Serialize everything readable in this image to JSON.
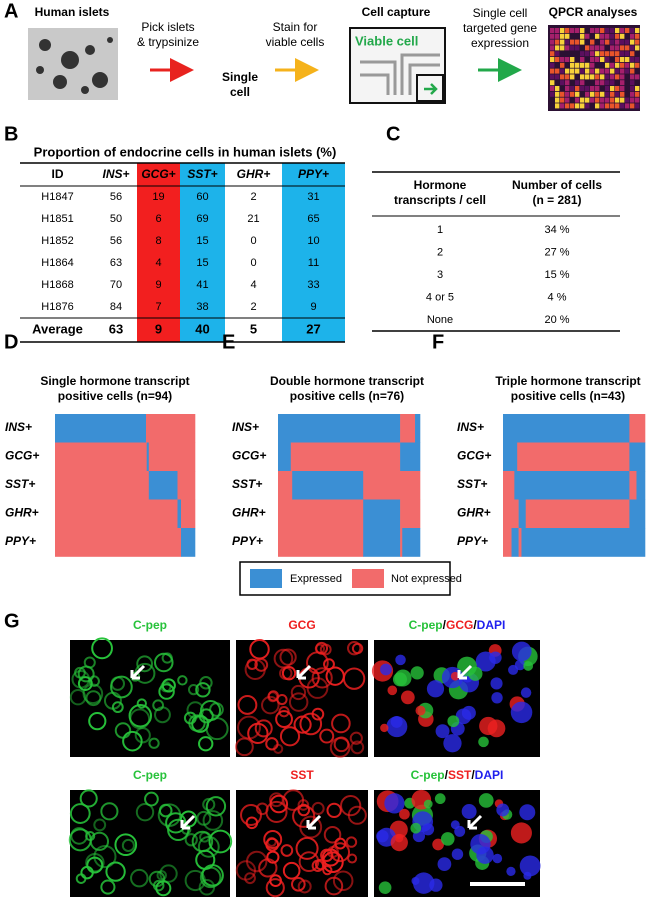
{
  "panel_a": {
    "letter": "A",
    "source": "Human islets",
    "step1": [
      "Pick islets",
      "& trypsinize"
    ],
    "intermediate": [
      "Single",
      "cell"
    ],
    "step2": [
      "Stain for",
      "viable cells"
    ],
    "capture_title": "Cell capture",
    "capture_label": "Viable cell",
    "step3": [
      "Single cell",
      "targeted gene",
      "expression"
    ],
    "result": "QPCR analyses"
  },
  "panel_b": {
    "letter": "B",
    "title": "Proportion of endocrine cells in human islets (%)",
    "columns": [
      "ID",
      "INS+",
      "GCG+",
      "SST+",
      "GHR+",
      "PPY+"
    ],
    "rows": [
      [
        "H1847",
        56,
        19,
        60,
        2,
        31
      ],
      [
        "H1851",
        50,
        6,
        69,
        21,
        65
      ],
      [
        "H1852",
        56,
        8,
        15,
        0,
        10
      ],
      [
        "H1864",
        63,
        4,
        15,
        0,
        11
      ],
      [
        "H1868",
        70,
        9,
        41,
        4,
        33
      ],
      [
        "H1876",
        84,
        7,
        38,
        2,
        9
      ]
    ],
    "average": [
      "Average",
      63,
      9,
      40,
      5,
      27
    ]
  },
  "panel_c": {
    "letter": "C",
    "columns": [
      [
        "Hormone",
        "transcripts / cell"
      ],
      [
        "Number of cells",
        "(n = 281)"
      ]
    ],
    "rows": [
      [
        "1",
        "34 %"
      ],
      [
        "2",
        "27 %"
      ],
      [
        "3",
        "15 %"
      ],
      [
        "4 or 5",
        "4 %"
      ],
      [
        "None",
        "20 %"
      ]
    ]
  },
  "panel_d": {
    "letter": "D",
    "title": [
      "Single hormone transcript",
      "positive cells (n=94)"
    ],
    "rows": [
      "INS+",
      "GCG+",
      "SST+",
      "GHR+",
      "PPY+"
    ]
  },
  "panel_e": {
    "letter": "E",
    "title": [
      "Double hormone transcript",
      "positive cells (n=76)"
    ],
    "rows": [
      "INS+",
      "GCG+",
      "SST+",
      "GHR+",
      "PPY+"
    ]
  },
  "panel_f": {
    "letter": "F",
    "title": [
      "Triple hormone transcript",
      "positive cells (n=43)"
    ],
    "rows": [
      "INS+",
      "GCG+",
      "SST+",
      "GHR+",
      "PPY+"
    ]
  },
  "legend": [
    "Expressed",
    "Not expressed"
  ],
  "panel_g": {
    "letter": "G",
    "rows": [
      {
        "labels": [
          "C-pep",
          "GCG",
          [
            "C-pep",
            "/",
            "GCG",
            "/",
            "DAPI"
          ]
        ]
      },
      {
        "labels": [
          "C-pep",
          "SST",
          [
            "C-pep",
            "/",
            "SST",
            "/",
            "DAPI"
          ]
        ]
      }
    ]
  }
}
